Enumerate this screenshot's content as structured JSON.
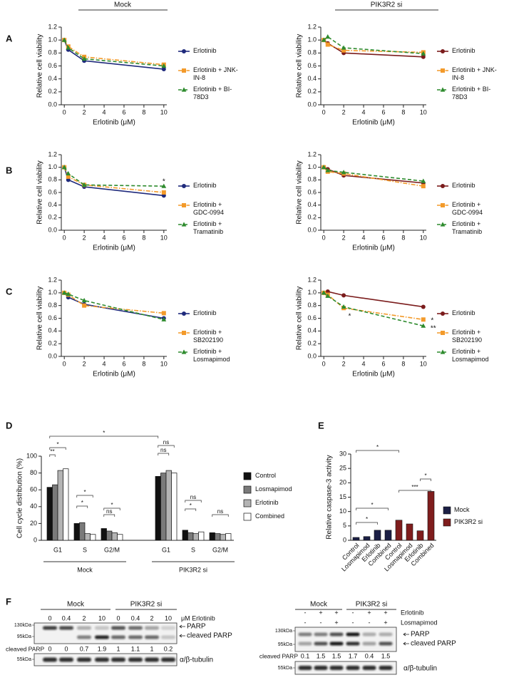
{
  "headers": {
    "left": "Mock",
    "right": "PIK3R2 si"
  },
  "panel_labels": [
    "A",
    "B",
    "C",
    "D",
    "E",
    "F"
  ],
  "chart_data": [
    {
      "type": "line",
      "x": [
        0,
        0.4,
        2,
        10
      ],
      "xlim": [
        -0.3,
        10.3
      ],
      "xticks": [
        0,
        2,
        4,
        6,
        8,
        10
      ],
      "ylim": [
        0,
        1.2
      ],
      "yticks": [
        {
          "value": 0,
          "label": "0.0"
        },
        0.2,
        0.4,
        0.6,
        0.8,
        {
          "value": 1,
          "label": "1.0"
        },
        1.2
      ],
      "x_label": "Erlotinib (μM)",
      "y_label": "Relative cell viability",
      "annotations": [],
      "series": [
        {
          "name": "Erlotinib",
          "color": "#1f2a7c",
          "line_style": "solid",
          "marker": "circle",
          "values": [
            1.0,
            0.85,
            0.68,
            0.55
          ]
        },
        {
          "name": "Erlotinib + JNK-IN-8",
          "color": "#f39a2a",
          "line_style": "dashdot",
          "marker": "square",
          "values": [
            1.0,
            0.9,
            0.74,
            0.62
          ]
        },
        {
          "name": "Erlotinib + BI-78D3",
          "color": "#2e8b2e",
          "line_style": "dashed",
          "marker": "triangle",
          "values": [
            1.0,
            0.88,
            0.71,
            0.6
          ]
        }
      ]
    },
    {
      "type": "line",
      "x": [
        0,
        0.4,
        2,
        10
      ],
      "xlim": [
        -0.3,
        10.3
      ],
      "xticks": [
        0,
        2,
        4,
        6,
        8,
        10
      ],
      "ylim": [
        0,
        1.2
      ],
      "yticks": [
        {
          "value": 0,
          "label": "0.0"
        },
        0.2,
        0.4,
        0.6,
        0.8,
        {
          "value": 1,
          "label": "1.0"
        },
        1.2
      ],
      "x_label": "Erlotinib (μM)",
      "y_label": "Relative cell viability",
      "annotations": [],
      "series": [
        {
          "name": "Erlotinib",
          "color": "#7b1c1c",
          "line_style": "solid",
          "marker": "circle",
          "values": [
            1.0,
            0.95,
            0.8,
            0.74
          ]
        },
        {
          "name": "Erlotinib + JNK-IN-8",
          "color": "#f39a2a",
          "line_style": "dashdot",
          "marker": "square",
          "values": [
            1.0,
            0.93,
            0.84,
            0.81
          ]
        },
        {
          "name": "Erlotinib + BI-78D3",
          "color": "#2e8b2e",
          "line_style": "dashed",
          "marker": "triangle",
          "values": [
            1.0,
            1.05,
            0.88,
            0.79
          ]
        }
      ]
    },
    {
      "type": "line",
      "x": [
        0,
        0.4,
        2,
        10
      ],
      "xlim": [
        -0.3,
        10.3
      ],
      "xticks": [
        0,
        2,
        4,
        6,
        8,
        10
      ],
      "ylim": [
        0,
        1.2
      ],
      "yticks": [
        {
          "value": 0,
          "label": "0.0"
        },
        0.2,
        0.4,
        0.6,
        0.8,
        {
          "value": 1,
          "label": "1.0"
        },
        1.2
      ],
      "x_label": "Erlotinib (μM)",
      "y_label": "Relative cell viability",
      "annotations": [
        "*"
      ],
      "series": [
        {
          "name": "Erlotinib",
          "color": "#1f2a7c",
          "line_style": "solid",
          "marker": "circle",
          "values": [
            1.0,
            0.8,
            0.69,
            0.55
          ]
        },
        {
          "name": "Erlotinib + GDC-0994",
          "color": "#f39a2a",
          "line_style": "dashdot",
          "marker": "square",
          "values": [
            1.0,
            0.85,
            0.72,
            0.6
          ]
        },
        {
          "name": "Erlotinib + Tramatinib",
          "color": "#2e8b2e",
          "line_style": "dashed",
          "marker": "triangle",
          "values": [
            1.0,
            0.9,
            0.72,
            0.7
          ]
        }
      ]
    },
    {
      "type": "line",
      "x": [
        0,
        0.4,
        2,
        10
      ],
      "xlim": [
        -0.3,
        10.3
      ],
      "xticks": [
        0,
        2,
        4,
        6,
        8,
        10
      ],
      "ylim": [
        0,
        1.2
      ],
      "yticks": [
        {
          "value": 0,
          "label": "0.0"
        },
        0.2,
        0.4,
        0.6,
        0.8,
        {
          "value": 1,
          "label": "1.0"
        },
        1.2
      ],
      "x_label": "Erlotinib (μM)",
      "y_label": "Relative cell viability",
      "annotations": [],
      "series": [
        {
          "name": "Erlotinib",
          "color": "#7b1c1c",
          "line_style": "solid",
          "marker": "circle",
          "values": [
            1.0,
            0.97,
            0.87,
            0.75
          ]
        },
        {
          "name": "Erlotinib + GDC-0994",
          "color": "#f39a2a",
          "line_style": "dashdot",
          "marker": "square",
          "values": [
            1.0,
            0.93,
            0.9,
            0.7
          ]
        },
        {
          "name": "Erlotinib + Tramatinib",
          "color": "#2e8b2e",
          "line_style": "dashed",
          "marker": "triangle",
          "values": [
            1.0,
            0.95,
            0.92,
            0.78
          ]
        }
      ]
    },
    {
      "type": "line",
      "x": [
        0,
        0.4,
        2,
        10
      ],
      "xlim": [
        -0.3,
        10.3
      ],
      "xticks": [
        0,
        2,
        4,
        6,
        8,
        10
      ],
      "ylim": [
        0,
        1.2
      ],
      "yticks": [
        {
          "value": 0,
          "label": "0.0"
        },
        0.2,
        0.4,
        0.6,
        0.8,
        {
          "value": 1,
          "label": "1.0"
        },
        1.2
      ],
      "x_label": "Erlotinib (μM)",
      "y_label": "Relative cell viability",
      "annotations": [],
      "series": [
        {
          "name": "Erlotinib",
          "color": "#1f2a7c",
          "line_style": "solid",
          "marker": "circle",
          "values": [
            1.0,
            0.93,
            0.82,
            0.6
          ]
        },
        {
          "name": "Erlotinib + SB202190",
          "color": "#f39a2a",
          "line_style": "dashdot",
          "marker": "square",
          "values": [
            1.0,
            0.97,
            0.8,
            0.68
          ]
        },
        {
          "name": "Erlotinib + Losmapimod",
          "color": "#2e8b2e",
          "line_style": "dashed",
          "marker": "triangle",
          "values": [
            1.0,
            0.98,
            0.88,
            0.58
          ]
        }
      ]
    },
    {
      "type": "line",
      "x": [
        0,
        0.4,
        2,
        10
      ],
      "xlim": [
        -0.3,
        10.3
      ],
      "xticks": [
        0,
        2,
        4,
        6,
        8,
        10
      ],
      "ylim": [
        0,
        1.2
      ],
      "yticks": [
        {
          "value": 0,
          "label": "0.0"
        },
        0.2,
        0.4,
        0.6,
        0.8,
        {
          "value": 1,
          "label": "1.0"
        },
        1.2
      ],
      "x_label": "Erlotinib (μM)",
      "y_label": "Relative cell viability",
      "annotations": [
        "*",
        "*",
        "**"
      ],
      "series": [
        {
          "name": "Erlotinib",
          "color": "#7b1c1c",
          "line_style": "solid",
          "marker": "circle",
          "values": [
            1.0,
            1.02,
            0.96,
            0.78
          ]
        },
        {
          "name": "Erlotinib + SB202190",
          "color": "#f39a2a",
          "line_style": "dashdot",
          "marker": "square",
          "values": [
            1.0,
            0.97,
            0.76,
            0.58
          ]
        },
        {
          "name": "Erlotinib + Losmapimod",
          "color": "#2e8b2e",
          "line_style": "dashed",
          "marker": "triangle",
          "values": [
            1.0,
            0.95,
            0.78,
            0.48
          ]
        }
      ]
    },
    {
      "type": "bar",
      "categories": [
        "G1",
        "S",
        "G2/M",
        "G1",
        "S",
        "G2/M"
      ],
      "groups": [
        "Mock",
        "PIK3R2 si"
      ],
      "ylim": [
        0,
        100
      ],
      "yticks": [
        0,
        20,
        40,
        60,
        80,
        100
      ],
      "y_label": "Cell cycle distribution (%)",
      "annotations": [
        "*",
        "*",
        "**",
        "*",
        "*",
        "ns",
        "*",
        "ns",
        "ns",
        "ns",
        "*",
        "ns"
      ],
      "series": [
        {
          "name": "Control",
          "color": "#111111",
          "values": [
            63,
            20,
            14,
            76,
            12,
            9
          ]
        },
        {
          "name": "Losmapimod",
          "color": "#7a7a7a",
          "values": [
            66,
            21,
            11,
            80,
            9,
            8
          ]
        },
        {
          "name": "Erlotinib",
          "color": "#b4b4b4",
          "values": [
            83,
            8,
            9,
            83,
            8,
            7
          ]
        },
        {
          "name": "Combined",
          "color": "#ffffff",
          "values": [
            85,
            7,
            7,
            80,
            10,
            8
          ]
        }
      ]
    },
    {
      "type": "bar",
      "categories": [
        "Control",
        "Losmapimod",
        "Erlotinib",
        "Combined",
        "Control",
        "Losmapimod",
        "Erlotinib",
        "Combined"
      ],
      "ylim": [
        0,
        30
      ],
      "yticks": [
        0,
        5,
        10,
        15,
        20,
        25,
        30
      ],
      "y_label": "Relative caspase-3 activity",
      "annotations": [
        "*",
        "***",
        "*",
        "*",
        "*"
      ],
      "series": [
        {
          "name": "Mock",
          "color": "#1b1f45",
          "values": [
            1,
            1.3,
            3.5,
            3.5,
            null,
            null,
            null,
            null
          ]
        },
        {
          "name": "PIK3R2 si",
          "color": "#7f1d1d",
          "values": [
            null,
            null,
            null,
            null,
            7,
            5.7,
            3.3,
            17
          ]
        }
      ]
    }
  ],
  "blots": [
    {
      "groups": [
        "Mock",
        "PIK3R2 si"
      ],
      "lanes": [
        0,
        0.4,
        2,
        10,
        0,
        0.4,
        2,
        10
      ],
      "lanes_label": "μM Erlotinib",
      "markers": [
        "130kDa",
        "95kDa",
        "55kDa"
      ],
      "bands": [
        "PARP",
        "cleaved PARP",
        "α/β-tubulin"
      ],
      "quant_label": "cleaved PARP",
      "quant": [
        0,
        0,
        0.7,
        1.9,
        1,
        1.1,
        1,
        0.2
      ]
    },
    {
      "groups": [
        "Mock",
        "PIK3R2 si"
      ],
      "conditions": [
        {
          "name": "Erlotinib",
          "marks": [
            "-",
            "+",
            "+",
            "-",
            "+",
            "+"
          ]
        },
        {
          "name": "Losmapimod",
          "marks": [
            "-",
            "-",
            "+",
            "-",
            "-",
            "+"
          ]
        }
      ],
      "markers": [
        "130kDa",
        "95kDa",
        "55kDa"
      ],
      "bands": [
        "PARP",
        "cleaved PARP",
        "α/β-tubulin"
      ],
      "quant_label": "cleaved PARP",
      "quant": [
        0.1,
        1.5,
        1.5,
        1.7,
        0.4,
        1.5
      ]
    }
  ]
}
